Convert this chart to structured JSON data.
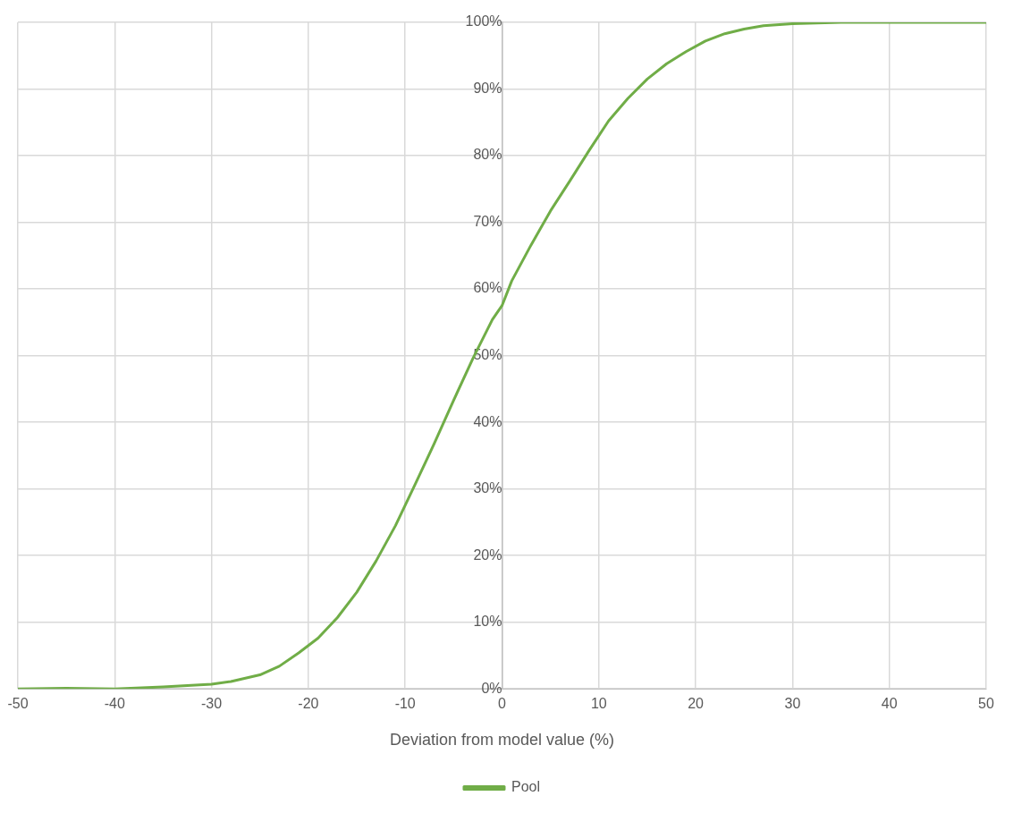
{
  "chart_data": {
    "type": "line",
    "xlabel": "Deviation from model value (%)",
    "xlim": [
      -50,
      50
    ],
    "xticks": [
      -50,
      -40,
      -30,
      -20,
      -10,
      0,
      10,
      20,
      30,
      40,
      50
    ],
    "ylim": [
      0,
      100
    ],
    "yticks": [
      {
        "value": 0,
        "label": "0%"
      },
      {
        "value": 10,
        "label": "10%"
      },
      {
        "value": 20,
        "label": "20%"
      },
      {
        "value": 30,
        "label": "30%"
      },
      {
        "value": 40,
        "label": "40%"
      },
      {
        "value": 50,
        "label": "50%"
      },
      {
        "value": 60,
        "label": "60%"
      },
      {
        "value": 70,
        "label": "70%"
      },
      {
        "value": 80,
        "label": "80%"
      },
      {
        "value": 90,
        "label": "90%"
      },
      {
        "value": 100,
        "label": "100%"
      }
    ],
    "grid": true,
    "legend": "bottom",
    "marker": "none",
    "line_style": "solid",
    "series": [
      {
        "name": "Pool",
        "color": "#70ad47",
        "x": [
          -50,
          -45,
          -40,
          -35,
          -30,
          -28,
          -25,
          -23,
          -21,
          -19,
          -17,
          -15,
          -13,
          -11,
          -9,
          -7,
          -5,
          -3,
          -1,
          0,
          1,
          3,
          5,
          7,
          9,
          11,
          13,
          15,
          17,
          19,
          21,
          23,
          25,
          27,
          30,
          35,
          40,
          50
        ],
        "values": [
          0,
          0.1,
          0,
          0.3,
          0.7,
          1.1,
          2.1,
          3.4,
          5.4,
          7.6,
          10.7,
          14.5,
          19.2,
          24.5,
          30.6,
          36.8,
          43.3,
          49.6,
          55.4,
          57.5,
          61.2,
          66.6,
          71.7,
          76.2,
          80.8,
          85.2,
          88.6,
          91.5,
          93.8,
          95.6,
          97.2,
          98.3,
          99,
          99.5,
          99.8,
          100,
          100,
          100
        ]
      }
    ]
  }
}
